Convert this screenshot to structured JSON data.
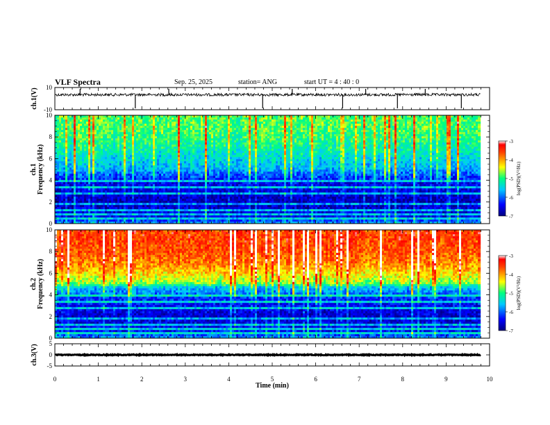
{
  "header": {
    "title": "VLF Spectra",
    "date": "Sep. 25, 2025",
    "station": "station= ANG",
    "start_time": "start  UT  =   4 : 40 : 0"
  },
  "chart_data": [
    {
      "type": "line",
      "panel": "ch1-waveform",
      "ylabel": "ch.1(V)",
      "ylim": [
        -10,
        10
      ],
      "y_ticks": [
        "10",
        "-10"
      ],
      "xlim": [
        0,
        10
      ],
      "baseline": 3.5,
      "spike_times": [
        0.58,
        1.85,
        2.62,
        4.78,
        5.46,
        6.62,
        7.15,
        7.88,
        8.52,
        9.35
      ]
    },
    {
      "type": "heatmap",
      "panel": "ch1-spectrogram",
      "ylabel": "ch.1\nFrequency (kHz)",
      "ylim": [
        0,
        10
      ],
      "y_ticks": [
        "0",
        "2",
        "4",
        "6",
        "8",
        "10"
      ],
      "xlim": [
        0,
        10
      ],
      "colorbar": {
        "label": "log(PSD)(V²/Hz)",
        "range": [
          -7,
          -3
        ],
        "ticks": [
          "-3",
          "-4",
          "-5",
          "-6",
          "-7"
        ]
      },
      "intensity_profile": {
        "freq_khz": [
          0,
          0.5,
          1,
          2,
          3,
          4,
          4.8,
          5,
          6,
          7,
          8,
          9,
          10
        ],
        "log_psd": [
          -5.8,
          -6.5,
          -6.6,
          -6.8,
          -6.6,
          -6.5,
          -6.0,
          -5.8,
          -5.6,
          -5.3,
          -5.1,
          -5.0,
          -5.0
        ]
      }
    },
    {
      "type": "heatmap",
      "panel": "ch2-spectrogram",
      "ylabel": "ch.2\nFrequency (kHz)",
      "ylim": [
        0,
        10
      ],
      "y_ticks": [
        "0",
        "2",
        "4",
        "6",
        "8",
        "10"
      ],
      "xlim": [
        0,
        10
      ],
      "colorbar": {
        "label": "log(PSD)(V²/Hz)",
        "range": [
          -7,
          -3
        ],
        "ticks": [
          "-3",
          "-4",
          "-5",
          "-6",
          "-7"
        ]
      },
      "intensity_profile": {
        "freq_khz": [
          0,
          0.5,
          1,
          2,
          3,
          4,
          4.8,
          5,
          6,
          7,
          8,
          9,
          10
        ],
        "log_psd": [
          -5.8,
          -6.4,
          -6.5,
          -6.7,
          -6.5,
          -6.2,
          -5.6,
          -4.9,
          -4.4,
          -4.0,
          -3.8,
          -3.7,
          -3.7
        ]
      }
    },
    {
      "type": "line",
      "panel": "ch3-waveform",
      "ylabel": "ch.3(V)",
      "ylim": [
        -5,
        5
      ],
      "y_ticks": [
        "5",
        "0",
        "-5"
      ],
      "xlim": [
        0,
        10
      ],
      "baseline": 0
    }
  ],
  "xaxis": {
    "label": "Time  (min)",
    "ticks": [
      "0",
      "1",
      "2",
      "3",
      "4",
      "5",
      "6",
      "7",
      "8",
      "9",
      "10"
    ]
  },
  "colors": {
    "low": "#00008f",
    "mid": "#00ff80",
    "high": "#ff0000"
  }
}
